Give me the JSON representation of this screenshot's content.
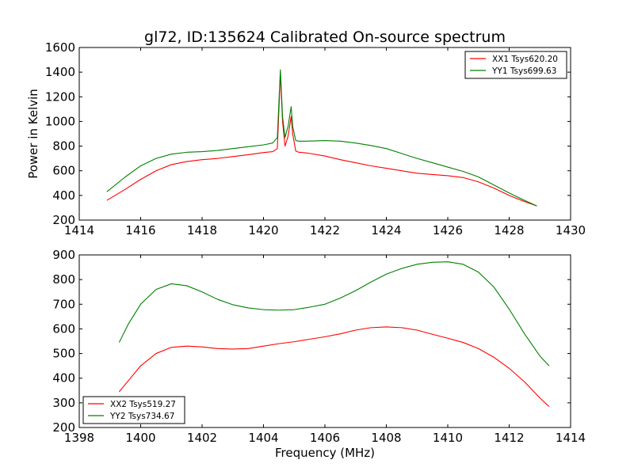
{
  "figure": {
    "title": "gl72, ID:135624 Calibrated On-source spectrum"
  },
  "chart_data": [
    {
      "type": "line",
      "title": "gl72, ID:135624 Calibrated On-source spectrum",
      "xlabel": "",
      "ylabel": "Power in Kelvin",
      "xlim": [
        1414,
        1430
      ],
      "ylim": [
        200,
        1600
      ],
      "xticks": [
        1414,
        1416,
        1418,
        1420,
        1422,
        1424,
        1426,
        1428,
        1430
      ],
      "yticks": [
        200,
        400,
        600,
        800,
        1000,
        1200,
        1400,
        1600
      ],
      "grid": false,
      "legend_position": "top-right",
      "series": [
        {
          "name": "XX1 Tsys620.20",
          "color": "#ff0000",
          "x": [
            1414.9,
            1415.5,
            1416.0,
            1416.5,
            1417.0,
            1417.5,
            1418.0,
            1418.5,
            1419.0,
            1419.5,
            1420.0,
            1420.3,
            1420.45,
            1420.55,
            1420.62,
            1420.7,
            1420.8,
            1420.9,
            1420.95,
            1421.05,
            1421.15,
            1421.4,
            1422.0,
            1422.5,
            1423.0,
            1423.5,
            1424.0,
            1424.5,
            1425.0,
            1425.5,
            1426.0,
            1426.5,
            1427.0,
            1427.5,
            1428.0,
            1428.5,
            1428.9
          ],
          "y": [
            360,
            450,
            530,
            600,
            650,
            675,
            690,
            700,
            715,
            730,
            748,
            755,
            780,
            1390,
            1000,
            800,
            880,
            1040,
            900,
            760,
            750,
            745,
            720,
            690,
            665,
            640,
            620,
            600,
            580,
            570,
            560,
            545,
            510,
            460,
            400,
            350,
            315
          ]
        },
        {
          "name": "YY1 Tsys699.63",
          "color": "#008000",
          "x": [
            1414.9,
            1415.5,
            1416.0,
            1416.5,
            1417.0,
            1417.5,
            1418.0,
            1418.5,
            1419.0,
            1419.5,
            1420.0,
            1420.3,
            1420.45,
            1420.55,
            1420.62,
            1420.7,
            1420.8,
            1420.9,
            1420.95,
            1421.05,
            1421.15,
            1421.4,
            1422.0,
            1422.5,
            1423.0,
            1423.5,
            1424.0,
            1424.5,
            1425.0,
            1425.5,
            1426.0,
            1426.5,
            1427.0,
            1427.5,
            1428.0,
            1428.5,
            1428.9
          ],
          "y": [
            430,
            550,
            640,
            700,
            735,
            750,
            755,
            765,
            780,
            795,
            810,
            825,
            870,
            1420,
            1040,
            870,
            960,
            1120,
            960,
            845,
            840,
            840,
            845,
            840,
            825,
            805,
            780,
            740,
            700,
            665,
            630,
            595,
            550,
            485,
            420,
            360,
            315
          ]
        }
      ]
    },
    {
      "type": "line",
      "title": "",
      "xlabel": "Frequency (MHz)",
      "ylabel": "",
      "xlim": [
        1398,
        1414
      ],
      "ylim": [
        200,
        900
      ],
      "xticks": [
        1398,
        1400,
        1402,
        1404,
        1406,
        1408,
        1410,
        1412,
        1414
      ],
      "yticks": [
        200,
        300,
        400,
        500,
        600,
        700,
        800,
        900
      ],
      "grid": false,
      "legend_position": "bottom-left",
      "series": [
        {
          "name": "XX2 Tsys519.27",
          "color": "#ff0000",
          "x": [
            1399.3,
            1399.6,
            1400.0,
            1400.5,
            1401.0,
            1401.5,
            1402.0,
            1402.5,
            1403.0,
            1403.5,
            1404.0,
            1404.5,
            1405.0,
            1405.5,
            1406.0,
            1406.5,
            1407.0,
            1407.5,
            1408.0,
            1408.5,
            1409.0,
            1409.5,
            1410.0,
            1410.5,
            1411.0,
            1411.5,
            1412.0,
            1412.5,
            1413.0,
            1413.3
          ],
          "y": [
            345,
            390,
            450,
            500,
            525,
            530,
            527,
            520,
            518,
            520,
            530,
            540,
            548,
            558,
            568,
            580,
            595,
            605,
            608,
            605,
            595,
            578,
            562,
            545,
            520,
            485,
            440,
            385,
            320,
            285
          ]
        },
        {
          "name": "YY2 Tsys734.67",
          "color": "#008000",
          "x": [
            1399.3,
            1399.6,
            1400.0,
            1400.5,
            1401.0,
            1401.5,
            1402.0,
            1402.5,
            1403.0,
            1403.5,
            1404.0,
            1404.5,
            1405.0,
            1405.5,
            1406.0,
            1406.5,
            1407.0,
            1407.5,
            1408.0,
            1408.5,
            1409.0,
            1409.5,
            1410.0,
            1410.5,
            1411.0,
            1411.5,
            1412.0,
            1412.5,
            1413.0,
            1413.3
          ],
          "y": [
            545,
            620,
            700,
            760,
            783,
            775,
            750,
            720,
            698,
            685,
            678,
            676,
            678,
            688,
            700,
            725,
            755,
            790,
            822,
            845,
            862,
            870,
            872,
            862,
            830,
            770,
            680,
            580,
            490,
            450
          ]
        }
      ]
    }
  ]
}
